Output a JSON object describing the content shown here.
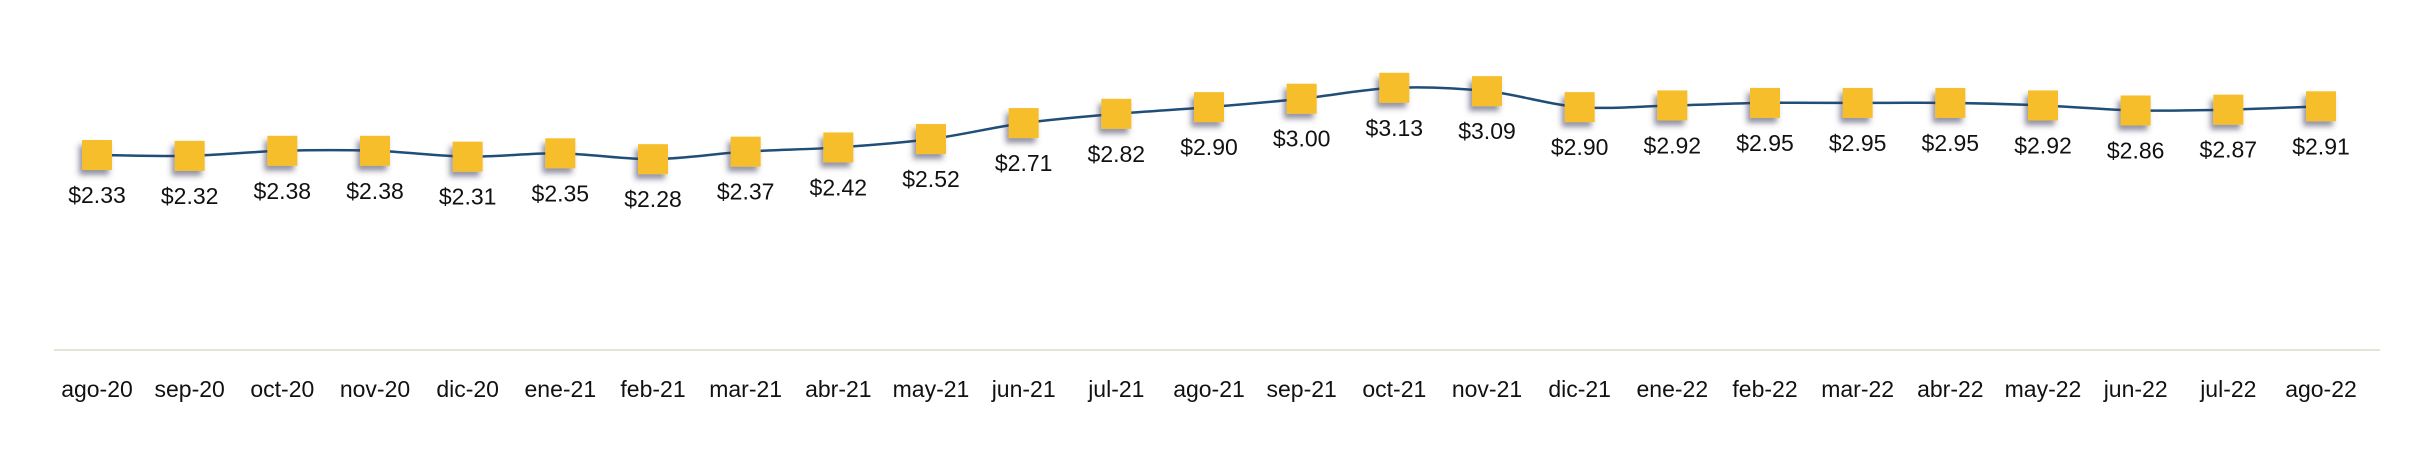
{
  "chart_data": {
    "type": "line",
    "title": "",
    "xlabel": "",
    "ylabel": "",
    "categories": [
      "ago-20",
      "sep-20",
      "oct-20",
      "nov-20",
      "dic-20",
      "ene-21",
      "feb-21",
      "mar-21",
      "abr-21",
      "may-21",
      "jun-21",
      "jul-21",
      "ago-21",
      "sep-21",
      "oct-21",
      "nov-21",
      "dic-21",
      "ene-22",
      "feb-22",
      "mar-22",
      "abr-22",
      "may-22",
      "jun-22",
      "jul-22",
      "ago-22"
    ],
    "values": [
      2.33,
      2.32,
      2.38,
      2.38,
      2.31,
      2.35,
      2.28,
      2.37,
      2.42,
      2.52,
      2.71,
      2.82,
      2.9,
      3.0,
      3.13,
      3.09,
      2.9,
      2.92,
      2.95,
      2.95,
      2.95,
      2.92,
      2.86,
      2.87,
      2.91
    ],
    "data_labels": [
      "$2.33",
      "$2.32",
      "$2.38",
      "$2.38",
      "$2.31",
      "$2.35",
      "$2.28",
      "$2.37",
      "$2.42",
      "$2.52",
      "$2.71",
      "$2.82",
      "$2.90",
      "$3.00",
      "$3.13",
      "$3.09",
      "$2.90",
      "$2.92",
      "$2.95",
      "$2.95",
      "$2.95",
      "$2.92",
      "$2.86",
      "$2.87",
      "$2.91"
    ],
    "smooth": true,
    "grid": false,
    "legend": "none",
    "colors": {
      "line": "#1F4E79",
      "marker": "#F5BE2A",
      "axis": "#E6E4D8"
    }
  }
}
